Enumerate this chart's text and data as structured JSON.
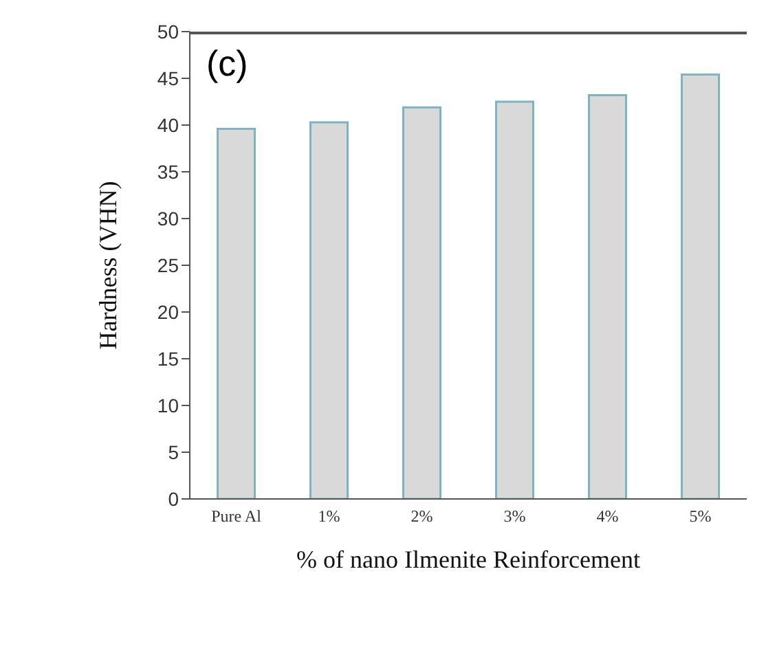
{
  "chart_data": {
    "type": "bar",
    "categories": [
      "Pure Al",
      "1%",
      "2%",
      "3%",
      "4%",
      "5%"
    ],
    "values": [
      39.6,
      40.3,
      41.9,
      42.5,
      43.2,
      45.4
    ],
    "color": "#d9d9d9",
    "xlabel": "% of nano Ilmenite Reinforcement",
    "ylabel": "Hardness (VHN)",
    "ylim": [
      0,
      50
    ],
    "yticks": [
      0,
      5,
      10,
      15,
      20,
      25,
      30,
      35,
      40,
      45,
      50
    ],
    "annotations": [
      "(c)"
    ]
  }
}
